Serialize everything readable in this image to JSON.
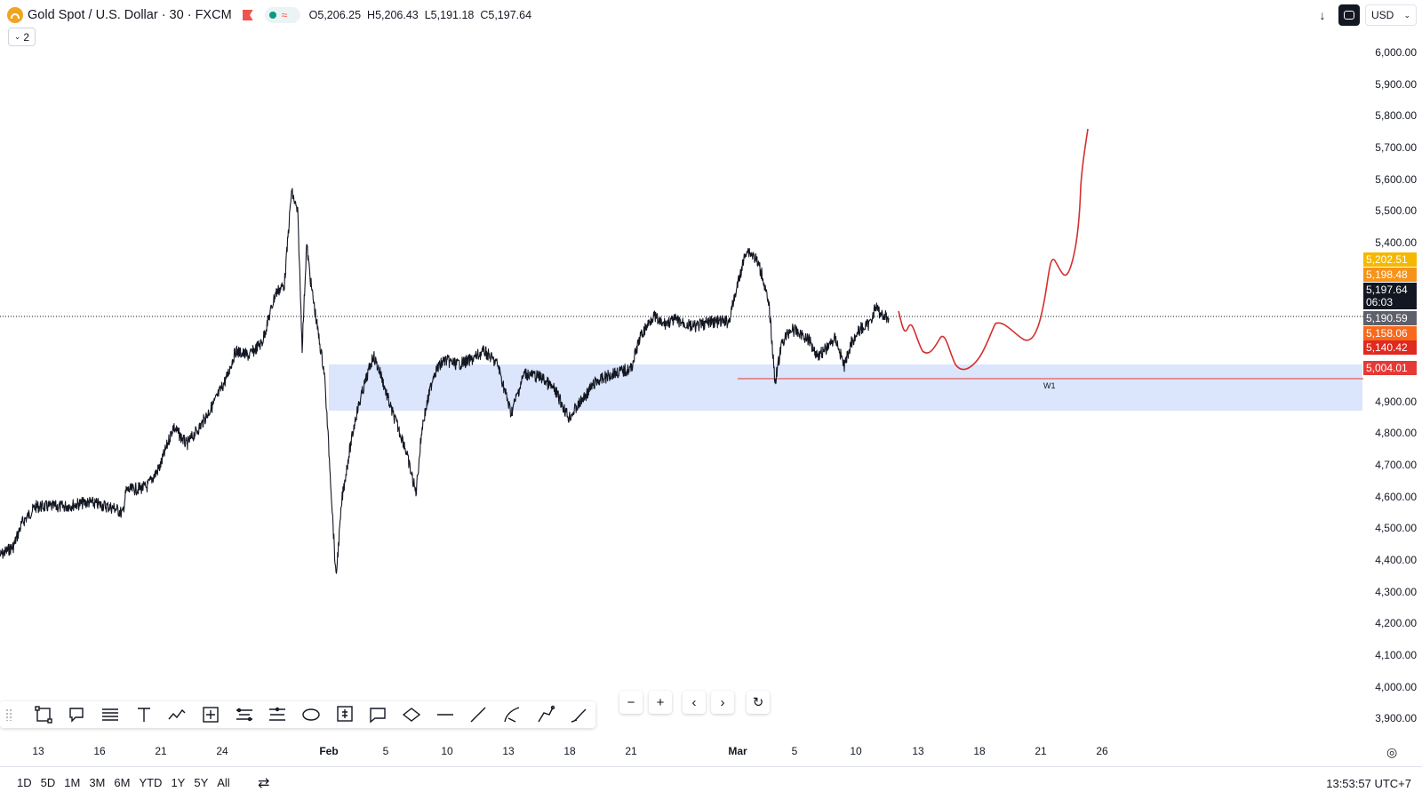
{
  "header": {
    "symbol_title": "Gold Spot / U.S. Dollar · 30 · FXCM",
    "ohlc": {
      "open": "O5,206.25",
      "high": "H5,206.43",
      "low": "L5,191.18",
      "close": "C5,197.64"
    },
    "indicators_toggle": "2",
    "currency": "USD",
    "pill_icon": "≈"
  },
  "price_scale": {
    "ticks": [
      "6,000.00",
      "5,900.00",
      "5,800.00",
      "5,700.00",
      "5,600.00",
      "5,500.00",
      "5,400.00",
      "4,900.00",
      "4,800.00",
      "4,700.00",
      "4,600.00",
      "4,500.00",
      "4,400.00",
      "4,300.00",
      "4,200.00",
      "4,100.00",
      "4,000.00",
      "3,900.00"
    ],
    "labels": [
      {
        "text": "5,202.51",
        "color": "#f5b800"
      },
      {
        "text": "5,198.48",
        "color": "#f7931a"
      },
      {
        "text": "5,190.59",
        "color": "#5d606b"
      },
      {
        "text": "5,158.06",
        "color": "#f76a1e"
      },
      {
        "text": "5,140.42",
        "color": "#e0291f"
      },
      {
        "text": "5,004.01",
        "color": "#e53935"
      }
    ],
    "current_price": "5,197.64",
    "countdown": "06:03"
  },
  "time_axis": {
    "ticks": [
      {
        "label": "13",
        "bold": false
      },
      {
        "label": "16",
        "bold": false
      },
      {
        "label": "21",
        "bold": false
      },
      {
        "label": "24",
        "bold": false
      },
      {
        "label": "Feb",
        "bold": true
      },
      {
        "label": "5",
        "bold": false
      },
      {
        "label": "10",
        "bold": false
      },
      {
        "label": "13",
        "bold": false
      },
      {
        "label": "18",
        "bold": false
      },
      {
        "label": "21",
        "bold": false
      },
      {
        "label": "Mar",
        "bold": true
      },
      {
        "label": "5",
        "bold": false
      },
      {
        "label": "10",
        "bold": false
      },
      {
        "label": "13",
        "bold": false
      },
      {
        "label": "18",
        "bold": false
      },
      {
        "label": "21",
        "bold": false
      },
      {
        "label": "26",
        "bold": false
      }
    ]
  },
  "annotations": {
    "level_label": "W1",
    "level_price": 5004.01,
    "zone_price_range": [
      4910,
      5055
    ],
    "zone_color": "#dbe5fb",
    "level_color": "#e53935",
    "forecast_color": "#d32f2f"
  },
  "drawing_tools": [
    {
      "name": "rectangle-tool-icon"
    },
    {
      "name": "callout-tool-icon"
    },
    {
      "name": "fib-retracement-tool-icon"
    },
    {
      "name": "text-tool-icon"
    },
    {
      "name": "path-tool-icon"
    },
    {
      "name": "crosshair-measure-tool-icon"
    },
    {
      "name": "parallel-channel-tool-icon"
    },
    {
      "name": "price-range-tool-icon"
    },
    {
      "name": "ellipse-tool-icon"
    },
    {
      "name": "price-note-tool-icon"
    },
    {
      "name": "comment-tool-icon"
    },
    {
      "name": "rotated-ellipse-tool-icon"
    },
    {
      "name": "horizontal-line-tool-icon"
    },
    {
      "name": "trend-line-tool-icon"
    },
    {
      "name": "curve-tool-icon"
    },
    {
      "name": "polyline-tool-icon"
    },
    {
      "name": "brush-tool-icon"
    }
  ],
  "nav_buttons": {
    "zoom_out": "−",
    "zoom_in": "+",
    "scroll_left": "‹",
    "scroll_right": "›",
    "reset": "↻"
  },
  "bottom_bar": {
    "ranges": [
      "1D",
      "5D",
      "1M",
      "3M",
      "6M",
      "YTD",
      "1Y",
      "5Y",
      "All"
    ],
    "clock": "13:53:57 UTC+7"
  }
}
